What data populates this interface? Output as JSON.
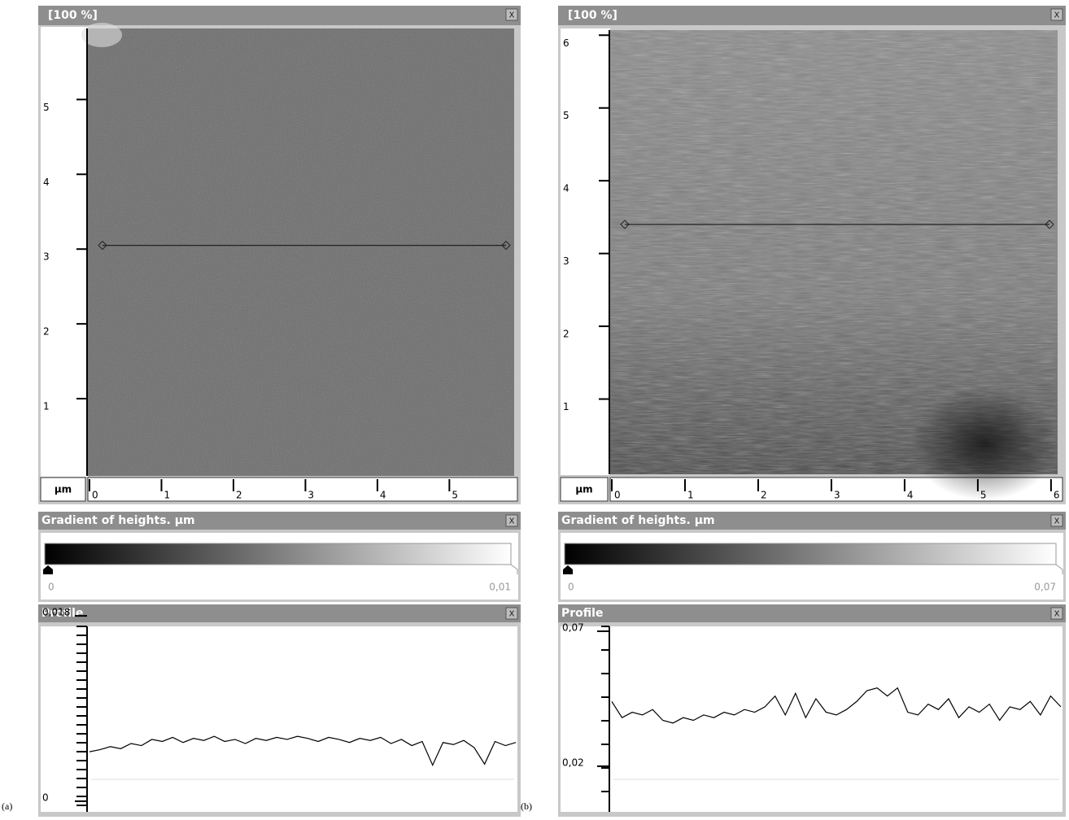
{
  "panels": [
    {
      "label": "(a)",
      "image": {
        "title": "[100 %]",
        "close": "x",
        "unit": "µm",
        "xlim": [
          0,
          5.9
        ],
        "ylim": [
          0,
          5.95
        ],
        "xticks": [
          0,
          1,
          2,
          3,
          4,
          5
        ],
        "yticks": [
          1,
          2,
          3,
          4,
          5
        ],
        "cut_y": 3.05
      },
      "gradient": {
        "title": "Gradient of heights. µm",
        "close": "x",
        "lim": [
          0,
          0.01
        ],
        "ticks": [
          0,
          {
            "value": 0.01,
            "label": "0,01"
          }
        ]
      },
      "profile": {
        "title": "Profile",
        "close": "x",
        "ylim": [
          -0.0008,
          0.0184
        ],
        "yticks": [
          {
            "value": 0.018,
            "label": "0,018"
          },
          0
        ],
        "values": [
          0.0048,
          0.005,
          0.0053,
          0.0051,
          0.0056,
          0.0054,
          0.006,
          0.0058,
          0.0062,
          0.0057,
          0.0061,
          0.0059,
          0.0063,
          0.0058,
          0.006,
          0.0056,
          0.0061,
          0.0059,
          0.0062,
          0.006,
          0.0063,
          0.0061,
          0.0058,
          0.0062,
          0.006,
          0.0057,
          0.0061,
          0.0059,
          0.0062,
          0.0056,
          0.006,
          0.0054,
          0.0058,
          0.0035,
          0.0057,
          0.0055,
          0.0059,
          0.0052,
          0.0036,
          0.0058,
          0.0054,
          0.0057
        ]
      }
    },
    {
      "label": "(b)",
      "image": {
        "title": "[100 %]",
        "close": "x",
        "unit": "µm",
        "xlim": [
          0,
          6.09
        ],
        "ylim": [
          0,
          6.07
        ],
        "xticks": [
          0,
          1,
          2,
          3,
          4,
          5,
          6
        ],
        "yticks": [
          1,
          2,
          3,
          4,
          5,
          6
        ],
        "cut_y": 3.4
      },
      "gradient": {
        "title": "Gradient of heights. µm",
        "close": "x",
        "lim": [
          0,
          0.07
        ],
        "ticks": [
          0,
          {
            "value": 0.07,
            "label": "0,07"
          }
        ]
      },
      "profile": {
        "title": "Profile",
        "close": "x",
        "ylim": [
          0.004,
          0.0712
        ],
        "yticks": [
          {
            "value": 0.07,
            "label": "0,07"
          },
          {
            "value": 0.02,
            "label": "0,02"
          }
        ],
        "values": [
          0.044,
          0.038,
          0.04,
          0.039,
          0.041,
          0.037,
          0.036,
          0.038,
          0.037,
          0.039,
          0.038,
          0.04,
          0.039,
          0.041,
          0.04,
          0.042,
          0.046,
          0.039,
          0.047,
          0.038,
          0.045,
          0.04,
          0.039,
          0.041,
          0.044,
          0.048,
          0.049,
          0.046,
          0.049,
          0.04,
          0.039,
          0.043,
          0.041,
          0.045,
          0.038,
          0.042,
          0.04,
          0.043,
          0.037,
          0.042,
          0.041,
          0.044,
          0.039,
          0.046,
          0.042
        ]
      }
    }
  ]
}
